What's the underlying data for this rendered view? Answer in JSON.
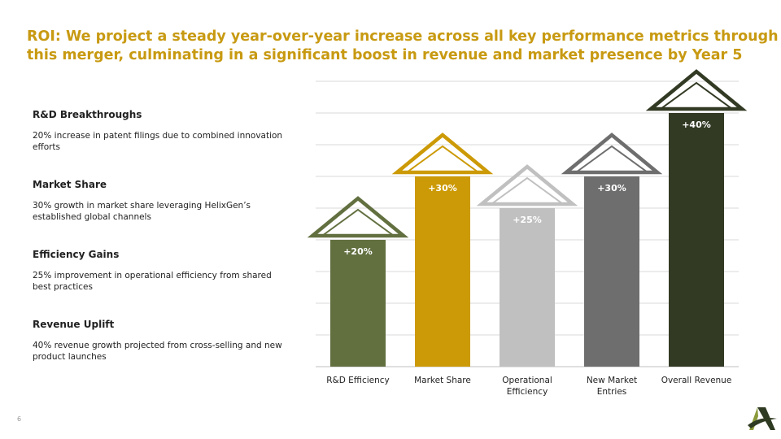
{
  "title": {
    "line1": "ROI: We project a steady year-over-year increase across all key performance metrics through",
    "line2": "this merger, culminating in a significant boost in revenue and market presence by Year 5"
  },
  "metrics": [
    {
      "heading": "R&D Breakthroughs",
      "description": "20% increase in patent filings due to combined innovation efforts"
    },
    {
      "heading": "Market Share",
      "description": "30% growth in market share leveraging HelixGen’s established global channels"
    },
    {
      "heading": "Efficiency Gains",
      "description": "25% improvement in operational efficiency from shared best practices"
    },
    {
      "heading": "Revenue Uplift",
      "description": "40% revenue growth projected from cross-selling and new product launches"
    }
  ],
  "chart_data": {
    "type": "bar",
    "categories": [
      [
        "R&D Efficiency"
      ],
      [
        "Market Share"
      ],
      [
        "Operational",
        "Efficiency"
      ],
      [
        "New Market",
        "Entries"
      ],
      [
        "Overall Revenue"
      ]
    ],
    "values": [
      20,
      30,
      25,
      30,
      40
    ],
    "data_labels": [
      "+20%",
      "+30%",
      "+25%",
      "+30%",
      "+40%"
    ],
    "colors": [
      "#627040",
      "#cc9a06",
      "#c0c0c0",
      "#6e6e6e",
      "#323a24"
    ],
    "label_colors": [
      "#ffffff",
      "#ffffff",
      "#ffffff",
      "#ffffff",
      "#ffffff"
    ],
    "ylim": [
      0,
      45
    ],
    "grid": true
  },
  "page_number": "6",
  "logo": {
    "icon": "triangle-swoosh-logo",
    "colors": [
      "#8a9a3a",
      "#2f3a22"
    ]
  }
}
